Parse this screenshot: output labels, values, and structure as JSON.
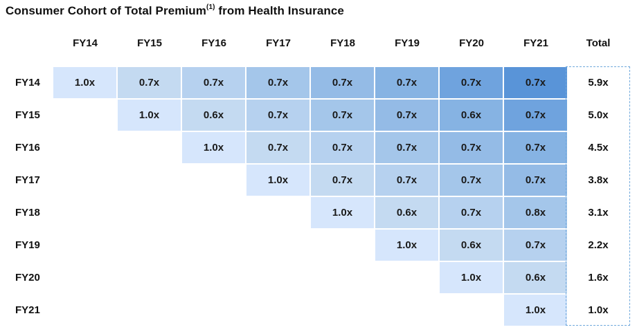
{
  "title": {
    "main": "Consumer Cohort of Total Premium",
    "superscript": "(1)",
    "suffix": "from Health Insurance"
  },
  "chart_data": {
    "type": "heatmap",
    "title": "Consumer Cohort of Total Premium(1) from Health Insurance",
    "columns": [
      "FY14",
      "FY15",
      "FY16",
      "FY17",
      "FY18",
      "FY19",
      "FY20",
      "FY21"
    ],
    "total_label": "Total",
    "rows": [
      {
        "label": "FY14",
        "values": [
          "1.0x",
          "0.7x",
          "0.7x",
          "0.7x",
          "0.7x",
          "0.7x",
          "0.7x",
          "0.7x"
        ],
        "total": "5.9x"
      },
      {
        "label": "FY15",
        "values": [
          null,
          "1.0x",
          "0.6x",
          "0.7x",
          "0.7x",
          "0.7x",
          "0.6x",
          "0.7x"
        ],
        "total": "5.0x"
      },
      {
        "label": "FY16",
        "values": [
          null,
          null,
          "1.0x",
          "0.7x",
          "0.7x",
          "0.7x",
          "0.7x",
          "0.7x"
        ],
        "total": "4.5x"
      },
      {
        "label": "FY17",
        "values": [
          null,
          null,
          null,
          "1.0x",
          "0.7x",
          "0.7x",
          "0.7x",
          "0.7x"
        ],
        "total": "3.8x"
      },
      {
        "label": "FY18",
        "values": [
          null,
          null,
          null,
          null,
          "1.0x",
          "0.6x",
          "0.7x",
          "0.8x"
        ],
        "total": "3.1x"
      },
      {
        "label": "FY19",
        "values": [
          null,
          null,
          null,
          null,
          null,
          "1.0x",
          "0.6x",
          "0.7x"
        ],
        "total": "2.2x"
      },
      {
        "label": "FY20",
        "values": [
          null,
          null,
          null,
          null,
          null,
          null,
          "1.0x",
          "0.6x"
        ],
        "total": "1.6x"
      },
      {
        "label": "FY21",
        "values": [
          null,
          null,
          null,
          null,
          null,
          null,
          null,
          "1.0x"
        ],
        "total": "1.0x"
      }
    ],
    "color_scale": [
      "#d6e6fc",
      "#c4daf1",
      "#b6d1ef",
      "#a4c6ea",
      "#94bbe6",
      "#86b3e3",
      "#6fa3de",
      "#5994d8",
      "#3d82cc"
    ],
    "total_border_color": "#6fa8dc"
  }
}
